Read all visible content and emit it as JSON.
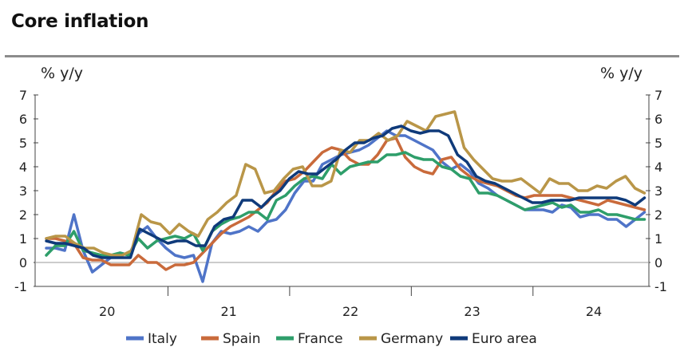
{
  "title": "Core inflation",
  "chart_data": {
    "type": "line",
    "title": "Core inflation",
    "ylabel_left": "% y/y",
    "ylabel_right": "% y/y",
    "ylim": [
      -1,
      7
    ],
    "yticks": [
      -1,
      0,
      1,
      2,
      3,
      4,
      5,
      6,
      7
    ],
    "x_start": 2020.0,
    "x_end": 2024.9,
    "xticks": [
      {
        "label": "20",
        "pos": 2020.5
      },
      {
        "label": "21",
        "pos": 2021.5
      },
      {
        "label": "22",
        "pos": 2022.5
      },
      {
        "label": "23",
        "pos": 2023.5
      },
      {
        "label": "24",
        "pos": 2024.5
      }
    ],
    "year_separators": [
      2021,
      2022,
      2023,
      2024
    ],
    "legend_position": "bottom",
    "series": [
      {
        "name": "Italy",
        "color": "#4f74c8",
        "values": [
          0.6,
          0.6,
          0.5,
          2.0,
          0.5,
          -0.4,
          -0.1,
          0.2,
          0.4,
          0.3,
          1.2,
          1.5,
          1.0,
          0.6,
          0.3,
          0.2,
          0.3,
          -0.8,
          0.8,
          1.3,
          1.2,
          1.3,
          1.5,
          1.3,
          1.7,
          1.8,
          2.2,
          2.9,
          3.4,
          3.4,
          4.1,
          4.3,
          4.5,
          4.6,
          4.7,
          4.9,
          5.2,
          5.5,
          5.3,
          5.3,
          5.1,
          4.9,
          4.7,
          4.2,
          3.9,
          4.1,
          3.8,
          3.3,
          3.1,
          2.8,
          2.6,
          2.4,
          2.2,
          2.2,
          2.2,
          2.1,
          2.4,
          2.3,
          1.9,
          2.0,
          2.0,
          1.8,
          1.8,
          1.5,
          1.8,
          2.1
        ]
      },
      {
        "name": "Spain",
        "color": "#c96a3b",
        "values": [
          1.0,
          1.0,
          0.9,
          0.8,
          0.2,
          0.1,
          0.1,
          -0.1,
          -0.1,
          -0.1,
          0.3,
          0.0,
          0.0,
          -0.3,
          -0.1,
          -0.1,
          0.0,
          0.4,
          0.8,
          1.2,
          1.5,
          1.7,
          1.9,
          2.2,
          2.5,
          3.0,
          3.4,
          3.5,
          3.8,
          4.2,
          4.6,
          4.8,
          4.7,
          4.3,
          4.1,
          4.1,
          4.5,
          5.1,
          5.2,
          4.4,
          4.0,
          3.8,
          3.7,
          4.3,
          4.4,
          3.9,
          3.6,
          3.4,
          3.3,
          3.2,
          3.0,
          2.8,
          2.7,
          2.8,
          2.8,
          2.8,
          2.8,
          2.7,
          2.6,
          2.5,
          2.4,
          2.6,
          2.5,
          2.4,
          2.3,
          2.2
        ]
      },
      {
        "name": "France",
        "color": "#2e9e6a",
        "values": [
          0.3,
          0.7,
          0.7,
          1.3,
          0.5,
          0.4,
          0.3,
          0.3,
          0.4,
          0.3,
          1.0,
          0.6,
          0.9,
          1.0,
          1.1,
          1.0,
          1.2,
          0.5,
          1.3,
          1.6,
          1.8,
          1.9,
          2.1,
          2.1,
          1.8,
          2.6,
          2.8,
          3.2,
          3.5,
          3.6,
          3.5,
          4.1,
          3.7,
          4.0,
          4.1,
          4.2,
          4.2,
          4.5,
          4.5,
          4.6,
          4.4,
          4.3,
          4.3,
          4.0,
          3.9,
          3.6,
          3.5,
          2.9,
          2.9,
          2.8,
          2.6,
          2.4,
          2.2,
          2.3,
          2.4,
          2.5,
          2.3,
          2.4,
          2.1,
          2.1,
          2.2,
          2.0,
          2.0,
          1.9,
          1.8,
          1.8
        ]
      },
      {
        "name": "Germany",
        "color": "#b99648",
        "values": [
          1.0,
          1.1,
          1.1,
          0.8,
          0.6,
          0.6,
          0.4,
          0.3,
          0.3,
          0.5,
          2.0,
          1.7,
          1.6,
          1.2,
          1.6,
          1.3,
          1.1,
          1.8,
          2.1,
          2.5,
          2.8,
          4.1,
          3.9,
          2.9,
          3.0,
          3.5,
          3.9,
          4.0,
          3.2,
          3.2,
          3.4,
          4.7,
          4.6,
          5.1,
          5.1,
          5.4,
          5.1,
          5.3,
          5.9,
          5.7,
          5.5,
          6.1,
          6.2,
          6.3,
          4.8,
          4.3,
          3.9,
          3.5,
          3.4,
          3.4,
          3.5,
          3.2,
          2.9,
          3.5,
          3.3,
          3.3,
          3.0,
          3.0,
          3.2,
          3.1,
          3.4,
          3.6,
          3.1,
          2.9
        ]
      },
      {
        "name": "Euro area",
        "color": "#0f3a7a",
        "values": [
          0.9,
          0.8,
          0.8,
          0.7,
          0.6,
          0.3,
          0.2,
          0.2,
          0.2,
          0.2,
          1.4,
          1.2,
          1.0,
          0.8,
          0.9,
          0.9,
          0.7,
          0.7,
          1.5,
          1.8,
          1.9,
          2.6,
          2.6,
          2.3,
          2.7,
          3.0,
          3.5,
          3.8,
          3.7,
          3.7,
          4.0,
          4.3,
          4.7,
          5.0,
          5.0,
          5.2,
          5.3,
          5.6,
          5.7,
          5.5,
          5.4,
          5.5,
          5.5,
          5.3,
          4.5,
          4.2,
          3.6,
          3.4,
          3.3,
          3.1,
          2.9,
          2.7,
          2.5,
          2.5,
          2.6,
          2.6,
          2.6,
          2.7,
          2.7,
          2.7,
          2.7,
          2.7,
          2.6,
          2.4,
          2.7
        ]
      }
    ]
  }
}
